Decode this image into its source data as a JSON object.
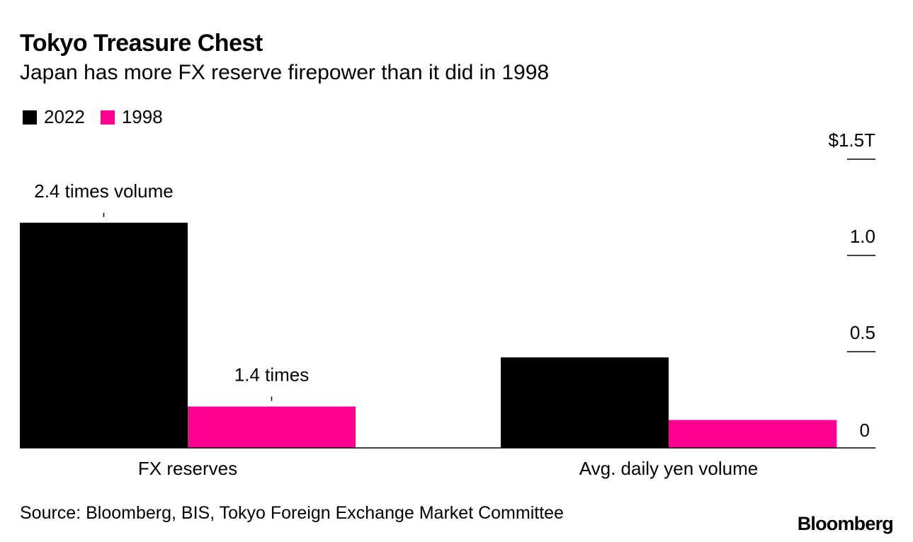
{
  "header": {
    "title": "Tokyo Treasure Chest",
    "subtitle": "Japan has more FX reserve firepower than it did in 1998"
  },
  "legend": [
    {
      "label": "2022",
      "color": "#000000"
    },
    {
      "label": "1998",
      "color": "#ff0090"
    }
  ],
  "footer": {
    "source": "Source: Bloomberg, BIS, Tokyo Foreign Exchange Market Committee",
    "brand": "Bloomberg"
  },
  "chart_data": {
    "type": "bar",
    "categories": [
      "FX reserves",
      "Avg. daily yen volume"
    ],
    "series": [
      {
        "name": "2022",
        "color": "#000000",
        "values": [
          1.17,
          0.47
        ]
      },
      {
        "name": "1998",
        "color": "#ff0090",
        "values": [
          0.215,
          0.145
        ]
      }
    ],
    "yaxis": {
      "position": "right",
      "ylim": [
        0,
        1.5
      ],
      "ticks": [
        {
          "value": 0,
          "label": "0"
        },
        {
          "value": 0.5,
          "label": "0.5"
        },
        {
          "value": 1.0,
          "label": "1.0"
        },
        {
          "value": 1.5,
          "label": "$1.5T"
        }
      ]
    },
    "annotations": [
      {
        "text": "2.4 times volume",
        "category": 0,
        "series": 0
      },
      {
        "text": "1.4 times",
        "category": 0,
        "series": 1
      }
    ],
    "grid": false,
    "legend_position": "top-left"
  }
}
